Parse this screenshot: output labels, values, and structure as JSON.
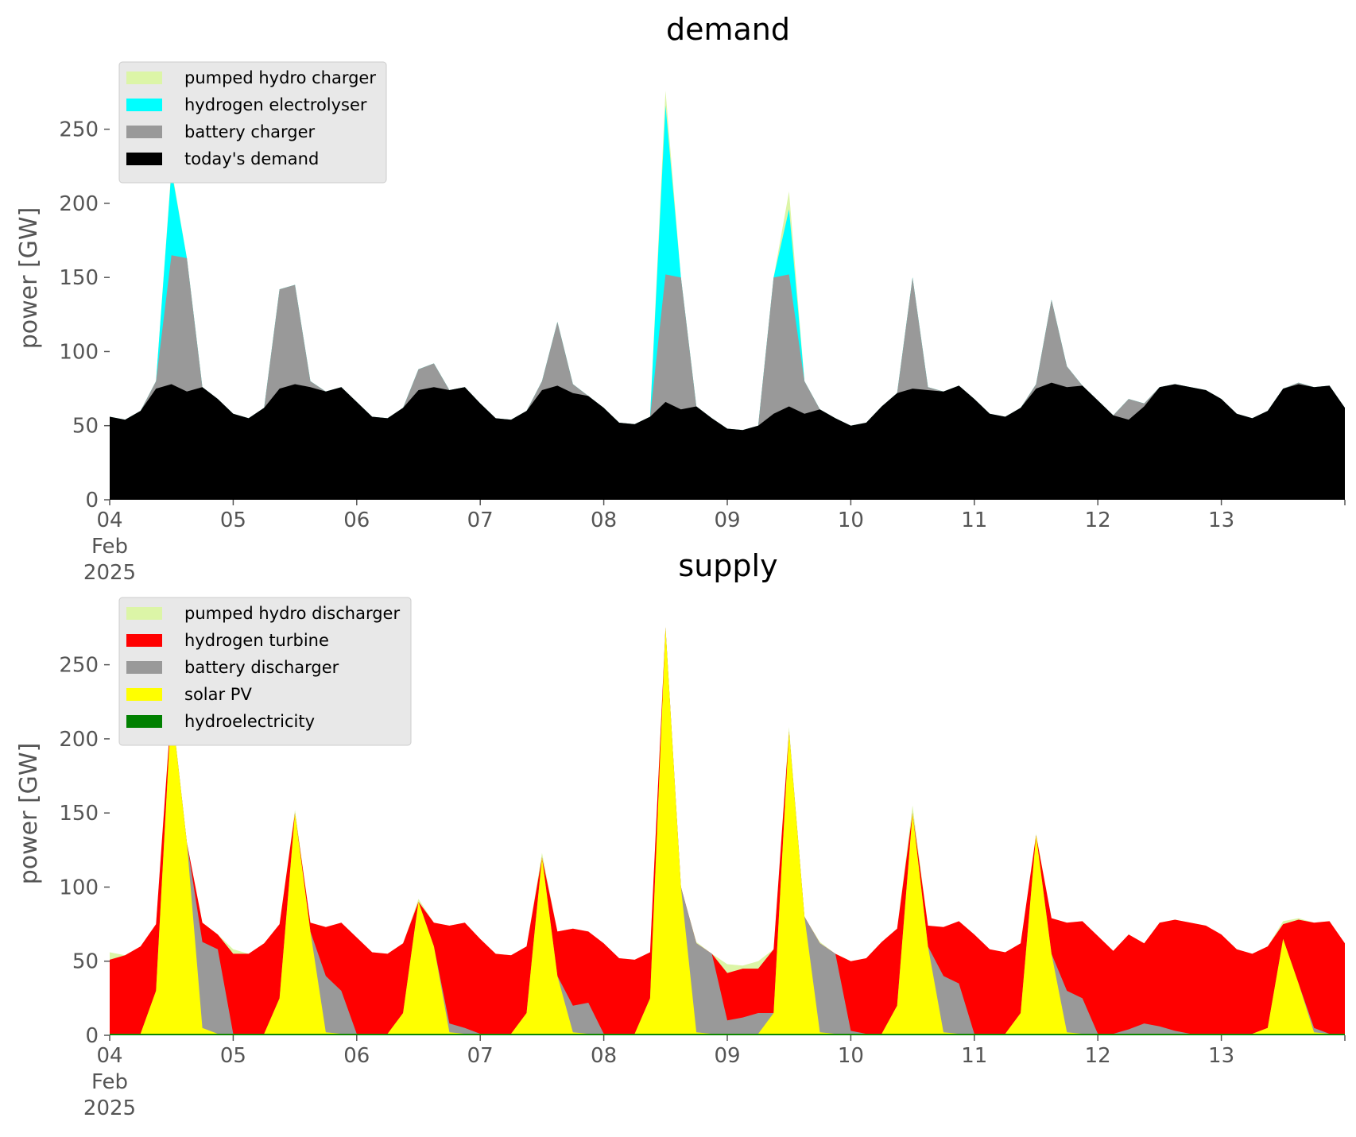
{
  "chart_data": [
    {
      "type": "area",
      "title": "demand",
      "ylabel": "power [GW]",
      "xlabel": "",
      "ylim": [
        0,
        290
      ],
      "yticks": [
        0,
        50,
        100,
        150,
        200,
        250
      ],
      "x_start": "2025-02-04",
      "x_end": "2025-02-14",
      "x_tick_labels": [
        "04\nFeb\n2025",
        "05",
        "06",
        "07",
        "08",
        "09",
        "10",
        "11",
        "12",
        "13"
      ],
      "stacking": "cumulative, legend top = stack top",
      "legend_position": "upper-left",
      "grid": false,
      "x": [
        "02-04 00:00",
        "02-04 03:00",
        "02-04 06:00",
        "02-04 09:00",
        "02-04 12:00",
        "02-04 15:00",
        "02-04 18:00",
        "02-04 21:00",
        "02-05 00:00",
        "02-05 03:00",
        "02-05 06:00",
        "02-05 09:00",
        "02-05 12:00",
        "02-05 15:00",
        "02-05 18:00",
        "02-05 21:00",
        "02-06 00:00",
        "02-06 03:00",
        "02-06 06:00",
        "02-06 09:00",
        "02-06 12:00",
        "02-06 15:00",
        "02-06 18:00",
        "02-06 21:00",
        "02-07 00:00",
        "02-07 03:00",
        "02-07 06:00",
        "02-07 09:00",
        "02-07 12:00",
        "02-07 15:00",
        "02-07 18:00",
        "02-07 21:00",
        "02-08 00:00",
        "02-08 03:00",
        "02-08 06:00",
        "02-08 09:00",
        "02-08 12:00",
        "02-08 15:00",
        "02-08 18:00",
        "02-08 21:00",
        "02-09 00:00",
        "02-09 03:00",
        "02-09 06:00",
        "02-09 09:00",
        "02-09 12:00",
        "02-09 15:00",
        "02-09 18:00",
        "02-09 21:00",
        "02-10 00:00",
        "02-10 03:00",
        "02-10 06:00",
        "02-10 09:00",
        "02-10 12:00",
        "02-10 15:00",
        "02-10 18:00",
        "02-10 21:00",
        "02-11 00:00",
        "02-11 03:00",
        "02-11 06:00",
        "02-11 09:00",
        "02-11 12:00",
        "02-11 15:00",
        "02-11 18:00",
        "02-11 21:00",
        "02-12 00:00",
        "02-12 03:00",
        "02-12 06:00",
        "02-12 09:00",
        "02-12 12:00",
        "02-12 15:00",
        "02-12 18:00",
        "02-12 21:00",
        "02-13 00:00",
        "02-13 03:00",
        "02-13 06:00",
        "02-13 09:00",
        "02-13 12:00",
        "02-13 15:00",
        "02-13 18:00",
        "02-13 21:00",
        "02-14 00:00"
      ],
      "series": [
        {
          "name": "today's demand",
          "color": "#000000",
          "values": [
            56,
            54,
            60,
            75,
            78,
            73,
            76,
            68,
            58,
            55,
            62,
            75,
            78,
            76,
            73,
            76,
            66,
            56,
            55,
            62,
            74,
            76,
            74,
            76,
            65,
            55,
            54,
            60,
            74,
            77,
            72,
            70,
            62,
            52,
            51,
            56,
            66,
            61,
            63,
            55,
            48,
            47,
            50,
            58,
            63,
            58,
            61,
            55,
            50,
            52,
            63,
            72,
            75,
            74,
            73,
            77,
            68,
            58,
            56,
            62,
            75,
            79,
            76,
            77,
            67,
            57,
            54,
            63,
            76,
            78,
            76,
            74,
            68,
            58,
            55,
            60,
            75,
            78,
            76,
            77,
            62
          ]
        },
        {
          "name": "battery charger",
          "color": "#999999",
          "values": [
            56,
            54,
            60,
            80,
            165,
            163,
            76,
            68,
            58,
            55,
            62,
            142,
            145,
            80,
            73,
            76,
            66,
            56,
            55,
            62,
            88,
            92,
            74,
            76,
            65,
            55,
            54,
            60,
            80,
            120,
            78,
            70,
            62,
            52,
            51,
            56,
            152,
            150,
            63,
            55,
            48,
            47,
            50,
            150,
            152,
            80,
            61,
            55,
            50,
            52,
            63,
            72,
            150,
            76,
            73,
            77,
            68,
            58,
            56,
            62,
            78,
            135,
            90,
            77,
            67,
            57,
            68,
            65,
            76,
            78,
            76,
            74,
            68,
            58,
            55,
            60,
            75,
            79,
            76,
            77,
            62
          ]
        },
        {
          "name": "hydrogen electrolyser",
          "color": "#00ffff",
          "values": [
            56,
            54,
            60,
            80,
            222,
            163,
            76,
            68,
            58,
            55,
            62,
            142,
            145,
            80,
            73,
            76,
            66,
            56,
            55,
            62,
            88,
            92,
            74,
            76,
            65,
            55,
            54,
            60,
            80,
            120,
            78,
            70,
            62,
            52,
            51,
            56,
            266,
            150,
            63,
            55,
            48,
            47,
            50,
            150,
            196,
            80,
            61,
            55,
            50,
            52,
            63,
            72,
            150,
            76,
            73,
            77,
            68,
            58,
            56,
            62,
            78,
            135,
            90,
            77,
            67,
            57,
            68,
            65,
            76,
            78,
            76,
            74,
            68,
            58,
            55,
            60,
            75,
            79,
            76,
            77,
            62
          ]
        },
        {
          "name": "pumped hydro charger",
          "color": "#dcf5a7",
          "values": [
            56,
            54,
            60,
            80,
            224,
            163,
            76,
            68,
            58,
            55,
            62,
            142,
            145,
            80,
            73,
            76,
            66,
            56,
            55,
            62,
            88,
            92,
            74,
            76,
            65,
            55,
            54,
            60,
            80,
            120,
            78,
            70,
            62,
            52,
            51,
            56,
            276,
            150,
            63,
            55,
            48,
            47,
            50,
            150,
            208,
            80,
            61,
            55,
            50,
            52,
            63,
            72,
            150,
            76,
            73,
            77,
            68,
            58,
            56,
            62,
            78,
            135,
            90,
            77,
            67,
            57,
            68,
            65,
            76,
            78,
            76,
            74,
            68,
            58,
            55,
            60,
            75,
            79,
            76,
            77,
            62
          ]
        }
      ]
    },
    {
      "type": "area",
      "title": "supply",
      "ylabel": "power [GW]",
      "xlabel": "",
      "ylim": [
        0,
        290
      ],
      "yticks": [
        0,
        50,
        100,
        150,
        200,
        250
      ],
      "x_start": "2025-02-04",
      "x_end": "2025-02-14",
      "x_tick_labels": [
        "04\nFeb\n2025",
        "05",
        "06",
        "07",
        "08",
        "09",
        "10",
        "11",
        "12",
        "13"
      ],
      "stacking": "cumulative, legend top = stack top",
      "legend_position": "upper-left",
      "grid": false,
      "x": [
        "02-04 00:00",
        "02-04 03:00",
        "02-04 06:00",
        "02-04 09:00",
        "02-04 12:00",
        "02-04 15:00",
        "02-04 18:00",
        "02-04 21:00",
        "02-05 00:00",
        "02-05 03:00",
        "02-05 06:00",
        "02-05 09:00",
        "02-05 12:00",
        "02-05 15:00",
        "02-05 18:00",
        "02-05 21:00",
        "02-06 00:00",
        "02-06 03:00",
        "02-06 06:00",
        "02-06 09:00",
        "02-06 12:00",
        "02-06 15:00",
        "02-06 18:00",
        "02-06 21:00",
        "02-07 00:00",
        "02-07 03:00",
        "02-07 06:00",
        "02-07 09:00",
        "02-07 12:00",
        "02-07 15:00",
        "02-07 18:00",
        "02-07 21:00",
        "02-08 00:00",
        "02-08 03:00",
        "02-08 06:00",
        "02-08 09:00",
        "02-08 12:00",
        "02-08 15:00",
        "02-08 18:00",
        "02-08 21:00",
        "02-09 00:00",
        "02-09 03:00",
        "02-09 06:00",
        "02-09 09:00",
        "02-09 12:00",
        "02-09 15:00",
        "02-09 18:00",
        "02-09 21:00",
        "02-10 00:00",
        "02-10 03:00",
        "02-10 06:00",
        "02-10 09:00",
        "02-10 12:00",
        "02-10 15:00",
        "02-10 18:00",
        "02-10 21:00",
        "02-11 00:00",
        "02-11 03:00",
        "02-11 06:00",
        "02-11 09:00",
        "02-11 12:00",
        "02-11 15:00",
        "02-11 18:00",
        "02-11 21:00",
        "02-12 00:00",
        "02-12 03:00",
        "02-12 06:00",
        "02-12 09:00",
        "02-12 12:00",
        "02-12 15:00",
        "02-12 18:00",
        "02-12 21:00",
        "02-13 00:00",
        "02-13 03:00",
        "02-13 06:00",
        "02-13 09:00",
        "02-13 12:00",
        "02-13 15:00",
        "02-13 18:00",
        "02-13 21:00",
        "02-14 00:00"
      ],
      "series": [
        {
          "name": "hydroelectricity",
          "color": "#008000",
          "values": [
            1,
            1,
            1,
            1,
            1,
            1,
            1,
            1,
            1,
            1,
            1,
            1,
            1,
            1,
            1,
            1,
            1,
            1,
            1,
            1,
            1,
            1,
            1,
            1,
            1,
            1,
            1,
            1,
            1,
            1,
            1,
            1,
            1,
            1,
            1,
            1,
            1,
            1,
            1,
            1,
            1,
            1,
            1,
            1,
            1,
            1,
            1,
            1,
            1,
            1,
            1,
            1,
            1,
            1,
            1,
            1,
            1,
            1,
            1,
            1,
            1,
            1,
            1,
            1,
            1,
            1,
            1,
            1,
            1,
            1,
            1,
            1,
            1,
            1,
            1,
            1,
            1,
            1,
            1,
            1,
            1
          ]
        },
        {
          "name": "solar PV",
          "color": "#ffff00",
          "values": [
            1,
            1,
            1,
            30,
            222,
            130,
            5,
            1,
            1,
            1,
            1,
            25,
            150,
            70,
            2,
            1,
            1,
            1,
            1,
            15,
            90,
            60,
            2,
            1,
            1,
            1,
            1,
            15,
            120,
            40,
            2,
            1,
            1,
            1,
            1,
            25,
            275,
            100,
            2,
            1,
            1,
            1,
            1,
            15,
            205,
            80,
            2,
            1,
            1,
            1,
            1,
            20,
            150,
            60,
            2,
            1,
            1,
            1,
            1,
            15,
            135,
            55,
            2,
            1,
            1,
            1,
            1,
            1,
            1,
            1,
            1,
            1,
            1,
            1,
            1,
            5,
            65,
            35,
            2,
            1,
            1
          ]
        },
        {
          "name": "battery discharger",
          "color": "#999999",
          "values": [
            1,
            1,
            1,
            30,
            222,
            130,
            63,
            58,
            1,
            1,
            1,
            25,
            150,
            70,
            40,
            30,
            1,
            1,
            1,
            15,
            90,
            60,
            8,
            5,
            1,
            1,
            1,
            15,
            120,
            40,
            20,
            22,
            1,
            1,
            1,
            25,
            275,
            100,
            62,
            55,
            10,
            12,
            15,
            15,
            205,
            80,
            62,
            55,
            3,
            1,
            1,
            20,
            150,
            60,
            40,
            35,
            1,
            1,
            1,
            15,
            135,
            55,
            30,
            25,
            1,
            1,
            4,
            8,
            6,
            3,
            1,
            1,
            1,
            1,
            1,
            5,
            65,
            35,
            5,
            1,
            1
          ]
        },
        {
          "name": "hydrogen turbine",
          "color": "#ff0000",
          "values": [
            51,
            54,
            60,
            75,
            222,
            130,
            76,
            68,
            55,
            55,
            62,
            75,
            150,
            76,
            73,
            76,
            66,
            56,
            55,
            62,
            90,
            76,
            74,
            76,
            65,
            55,
            54,
            60,
            120,
            70,
            72,
            70,
            62,
            52,
            51,
            56,
            275,
            100,
            62,
            55,
            42,
            45,
            45,
            58,
            205,
            80,
            62,
            55,
            50,
            52,
            63,
            72,
            150,
            74,
            73,
            77,
            68,
            58,
            56,
            62,
            135,
            79,
            76,
            77,
            67,
            57,
            68,
            62,
            76,
            78,
            76,
            74,
            68,
            58,
            55,
            60,
            75,
            78,
            76,
            77,
            62
          ]
        },
        {
          "name": "pumped hydro discharger",
          "color": "#dcf5a7",
          "values": [
            56,
            54,
            60,
            75,
            224,
            130,
            76,
            68,
            58,
            55,
            62,
            75,
            152,
            76,
            73,
            76,
            66,
            56,
            55,
            62,
            92,
            76,
            74,
            76,
            65,
            55,
            54,
            60,
            123,
            70,
            72,
            70,
            62,
            52,
            51,
            56,
            276,
            100,
            63,
            55,
            48,
            47,
            50,
            58,
            208,
            80,
            63,
            55,
            50,
            52,
            63,
            72,
            155,
            74,
            73,
            77,
            68,
            58,
            56,
            62,
            136,
            79,
            76,
            77,
            67,
            57,
            68,
            62,
            76,
            78,
            76,
            74,
            68,
            58,
            55,
            60,
            77,
            79,
            76,
            77,
            62
          ]
        }
      ]
    }
  ]
}
